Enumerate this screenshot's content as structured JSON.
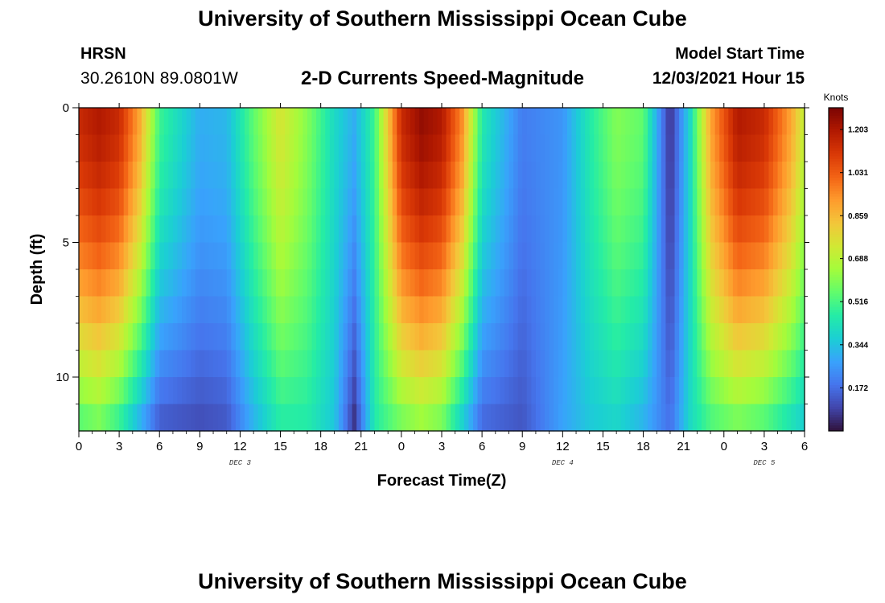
{
  "header": {
    "title": "University of Southern Mississippi Ocean Cube",
    "station_name": "HRSN",
    "station_coords": "30.2610N  89.0801W",
    "subtitle": "2-D Currents Speed-Magnitude",
    "model_label": "Model Start Time",
    "model_time": "12/03/2021 Hour 15"
  },
  "footer": {
    "title": "University of Southern Mississippi Ocean Cube"
  },
  "chart_data": {
    "type": "heatmap",
    "title": "2-D Currents Speed-Magnitude",
    "xlabel": "Forecast Time(Z)",
    "ylabel": "Depth (ft)",
    "x_start_hour": 0,
    "x_end_hour": 54,
    "x_ticks": [
      "0",
      "3",
      "6",
      "9",
      "12",
      "15",
      "18",
      "21",
      "0",
      "3",
      "6",
      "9",
      "12",
      "15",
      "18",
      "21",
      "0",
      "3",
      "6"
    ],
    "day_labels": [
      {
        "label": "DEC 3",
        "hour": 12
      },
      {
        "label": "DEC 4",
        "hour": 36
      },
      {
        "label": "DEC 5",
        "hour": 51
      }
    ],
    "y_ticks": [
      "0",
      "5",
      "10"
    ],
    "ylim": [
      0,
      12
    ],
    "colorbar": {
      "unit": "Knots",
      "ticks": [
        "1.203",
        "1.031",
        "0.859",
        "0.688",
        "0.516",
        "0.344",
        "0.172"
      ],
      "range": [
        0,
        1.29
      ],
      "colors": [
        "#30123b",
        "#4145ab",
        "#4675ed",
        "#39a2fc",
        "#1bcfd4",
        "#24eca6",
        "#61fc6c",
        "#a4fc3b",
        "#d1e834",
        "#f3c63a",
        "#fe9b2d",
        "#f36315",
        "#d93806",
        "#b11901",
        "#7a0403"
      ]
    },
    "speed_profile_by_hour": [
      {
        "hour": 0,
        "surface": 1.15,
        "bottom": 0.5
      },
      {
        "hour": 1.5,
        "surface": 1.2,
        "bottom": 0.55
      },
      {
        "hour": 3,
        "surface": 1.15,
        "bottom": 0.45
      },
      {
        "hour": 4.5,
        "surface": 0.9,
        "bottom": 0.28
      },
      {
        "hour": 6,
        "surface": 0.5,
        "bottom": 0.12
      },
      {
        "hour": 9,
        "surface": 0.3,
        "bottom": 0.1
      },
      {
        "hour": 11,
        "surface": 0.32,
        "bottom": 0.12
      },
      {
        "hour": 13,
        "surface": 0.55,
        "bottom": 0.3
      },
      {
        "hour": 15,
        "surface": 0.75,
        "bottom": 0.45
      },
      {
        "hour": 17,
        "surface": 0.6,
        "bottom": 0.45
      },
      {
        "hour": 19,
        "surface": 0.4,
        "bottom": 0.35
      },
      {
        "hour": 20.5,
        "surface": 0.3,
        "bottom": 0.05
      },
      {
        "hour": 22,
        "surface": 0.5,
        "bottom": 0.45
      },
      {
        "hour": 24,
        "surface": 1.15,
        "bottom": 0.55
      },
      {
        "hour": 25.5,
        "surface": 1.25,
        "bottom": 0.6
      },
      {
        "hour": 27,
        "surface": 1.2,
        "bottom": 0.55
      },
      {
        "hour": 28.5,
        "surface": 0.95,
        "bottom": 0.35
      },
      {
        "hour": 30,
        "surface": 0.45,
        "bottom": 0.15
      },
      {
        "hour": 33,
        "surface": 0.2,
        "bottom": 0.12
      },
      {
        "hour": 36,
        "surface": 0.25,
        "bottom": 0.28
      },
      {
        "hour": 38,
        "surface": 0.45,
        "bottom": 0.35
      },
      {
        "hour": 40,
        "surface": 0.6,
        "bottom": 0.38
      },
      {
        "hour": 42,
        "surface": 0.55,
        "bottom": 0.3
      },
      {
        "hour": 44,
        "surface": 0.05,
        "bottom": 0.18
      },
      {
        "hour": 45.5,
        "surface": 0.4,
        "bottom": 0.4
      },
      {
        "hour": 47,
        "surface": 0.9,
        "bottom": 0.5
      },
      {
        "hour": 49,
        "surface": 1.2,
        "bottom": 0.55
      },
      {
        "hour": 51,
        "surface": 1.15,
        "bottom": 0.5
      },
      {
        "hour": 53,
        "surface": 0.9,
        "bottom": 0.4
      },
      {
        "hour": 54,
        "surface": 0.7,
        "bottom": 0.35
      }
    ]
  }
}
